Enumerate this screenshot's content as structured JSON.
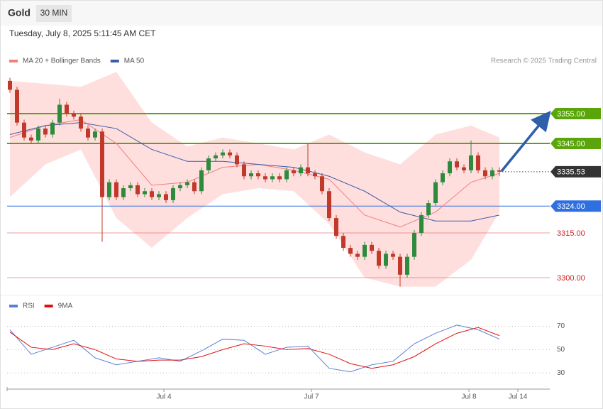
{
  "header": {
    "symbol": "Gold",
    "interval": "30 MIN",
    "timestamp": "Tuesday, July 8, 2025 5:11:45 AM CET"
  },
  "chart_data": [
    {
      "type": "candlestick",
      "note": "Research © 2025 Trading Central",
      "up_color": "#2e8b3e",
      "down_color": "#c0392b",
      "xlim": [
        -0.4,
        76.1
      ],
      "ylim": [
        3294.3,
        3369.3
      ],
      "open": [
        3366,
        3363,
        3352,
        3347,
        3346,
        3350,
        3348,
        3352,
        3358,
        3355,
        3354,
        3350,
        3347,
        3349,
        3327,
        3332,
        3327,
        3330,
        3331,
        3328,
        3329,
        3327,
        3328,
        3326,
        3330,
        3331,
        3332,
        3329,
        3336,
        3340,
        3341,
        3342,
        3341,
        3338,
        3334,
        3335,
        3334,
        3333,
        3334,
        3333,
        3336,
        3335,
        3337,
        3335,
        3334,
        3329,
        3320,
        3314,
        3310,
        3308,
        3307,
        3311,
        3309,
        3304,
        3308,
        3307,
        3301,
        3307,
        3315,
        3321,
        3325,
        3332,
        3335,
        3339,
        3337,
        3336,
        3341,
        3336,
        3334,
        3336
      ],
      "high": [
        3367,
        3364,
        3353,
        3348,
        3351,
        3351,
        3353,
        3360,
        3359,
        3356,
        3355,
        3351,
        3350,
        3350,
        3333,
        3333,
        3331,
        3332,
        3332,
        3330,
        3330,
        3329,
        3329,
        3331,
        3332,
        3333,
        3333,
        3337,
        3341,
        3342,
        3343,
        3343,
        3342,
        3339,
        3336,
        3336,
        3335,
        3335,
        3335,
        3337,
        3337,
        3338,
        3345,
        3336,
        3335,
        3330,
        3321,
        3315,
        3311,
        3309,
        3312,
        3312,
        3310,
        3309,
        3309,
        3308,
        3308,
        3316,
        3322,
        3326,
        3333,
        3336,
        3340,
        3340,
        3338,
        3346,
        3342,
        3337,
        3337,
        3337
      ],
      "low": [
        3362,
        3351,
        3346,
        3345,
        3345,
        3347,
        3347,
        3351,
        3354,
        3353,
        3349,
        3346,
        3346,
        3312,
        3326,
        3326,
        3326,
        3329,
        3327,
        3327,
        3326,
        3326,
        3325,
        3325,
        3329,
        3330,
        3328,
        3328,
        3335,
        3339,
        3340,
        3340,
        3337,
        3333,
        3333,
        3333,
        3332,
        3332,
        3332,
        3332,
        3334,
        3334,
        3334,
        3333,
        3328,
        3319,
        3313,
        3309,
        3307,
        3306,
        3306,
        3308,
        3303,
        3303,
        3306,
        3297,
        3300,
        3306,
        3314,
        3320,
        3324,
        3331,
        3334,
        3336,
        3335,
        3335,
        3335,
        3333,
        3333,
        3334
      ],
      "close": [
        3363,
        3352,
        3347,
        3346,
        3350,
        3348,
        3352,
        3358,
        3355,
        3354,
        3350,
        3347,
        3349,
        3327,
        3332,
        3327,
        3330,
        3331,
        3328,
        3329,
        3327,
        3328,
        3326,
        3330,
        3331,
        3332,
        3329,
        3336,
        3340,
        3341,
        3342,
        3341,
        3338,
        3334,
        3335,
        3334,
        3333,
        3334,
        3333,
        3336,
        3335,
        3337,
        3335,
        3334,
        3329,
        3320,
        3314,
        3310,
        3308,
        3307,
        3311,
        3309,
        3304,
        3308,
        3307,
        3301,
        3307,
        3315,
        3321,
        3325,
        3332,
        3335,
        3339,
        3337,
        3336,
        3341,
        3336,
        3334,
        3336,
        3335.53
      ],
      "series": [
        {
          "name": "MA 20 + Bollinger Bands",
          "color": "#f08080",
          "band_color": "#ffd3d3",
          "x": [
            0,
            5,
            10,
            15,
            20,
            25,
            30,
            35,
            40,
            45,
            50,
            55,
            60,
            65,
            69
          ],
          "values": [
            3347,
            3351,
            3353,
            3345,
            3331,
            3332,
            3337,
            3338,
            3336,
            3333,
            3321,
            3317,
            3322,
            3332,
            3335
          ],
          "upper": [
            3366,
            3365,
            3364,
            3369,
            3352,
            3344,
            3347,
            3345,
            3343,
            3348,
            3342,
            3338,
            3348,
            3351,
            3347
          ],
          "lower": [
            3327,
            3338,
            3343,
            3320,
            3310,
            3320,
            3328,
            3330,
            3329,
            3318,
            3300,
            3297,
            3297,
            3306,
            3322
          ]
        },
        {
          "name": "MA 50",
          "color": "#3a5ea8",
          "x": [
            0,
            5,
            10,
            15,
            20,
            25,
            30,
            35,
            40,
            45,
            50,
            55,
            60,
            65,
            69
          ],
          "values": [
            3348,
            3351,
            3352,
            3350,
            3343,
            3339,
            3339,
            3338,
            3337,
            3334,
            3329,
            3322,
            3319,
            3319,
            3321
          ]
        }
      ],
      "levels": [
        {
          "value": 3355,
          "label": "3355.00",
          "color": "#5aa50a",
          "tag": "box"
        },
        {
          "value": 3345,
          "label": "3345.00",
          "color": "#5aa50a",
          "tag": "box"
        },
        {
          "value": 3335.53,
          "label": "3335.53",
          "color": "#333333",
          "tag": "box",
          "line": "dotted"
        },
        {
          "value": 3324,
          "label": "3324.00",
          "color": "#2f6fe0",
          "tag": "box"
        },
        {
          "value": 3315,
          "label": "3315.00",
          "color": "#e06060",
          "tag": "text"
        },
        {
          "value": 3300,
          "label": "3300.00",
          "color": "#e06060",
          "tag": "text"
        }
      ]
    },
    {
      "type": "line",
      "xlim": [
        -0.4,
        76.1
      ],
      "ylim": [
        18,
        94
      ],
      "yticks": [
        30,
        50,
        70
      ],
      "grid": true,
      "xticks": [
        {
          "value": 21.7,
          "label": "Jul 4"
        },
        {
          "value": 42.5,
          "label": "Jul 7"
        },
        {
          "value": 64.7,
          "label": "Jul 8"
        },
        {
          "value": 71.6,
          "label": "Jul 14"
        }
      ],
      "series": [
        {
          "name": "RSI",
          "color": "#5b7fd6",
          "x": [
            0,
            3,
            6,
            9,
            12,
            15,
            18,
            21,
            24,
            27,
            30,
            33,
            36,
            39,
            42,
            45,
            48,
            51,
            54,
            57,
            60,
            63,
            66,
            69
          ],
          "values": [
            67,
            46,
            52,
            58,
            43,
            37,
            40,
            43,
            40,
            49,
            59,
            58,
            46,
            52,
            53,
            34,
            31,
            37,
            40,
            55,
            64,
            71,
            67,
            59
          ]
        },
        {
          "name": "9MA",
          "color": "#e01010",
          "x": [
            0,
            3,
            6,
            9,
            12,
            15,
            18,
            21,
            24,
            27,
            30,
            33,
            36,
            39,
            42,
            45,
            48,
            51,
            54,
            57,
            60,
            63,
            66,
            69
          ],
          "values": [
            65,
            52,
            50,
            55,
            50,
            42,
            40,
            41,
            41,
            44,
            50,
            55,
            53,
            50,
            51,
            46,
            38,
            34,
            37,
            44,
            55,
            64,
            69,
            62
          ]
        }
      ]
    }
  ]
}
